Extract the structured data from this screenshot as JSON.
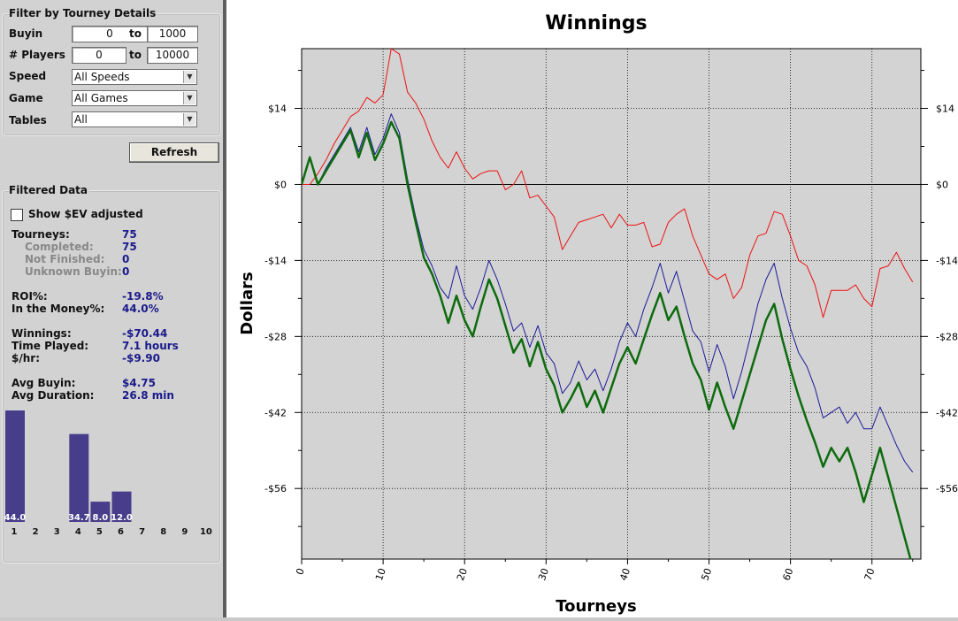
{
  "filter": {
    "title": "Filter by Tourney Details",
    "buyin_label": "Buyin",
    "buyin_from": "0",
    "buyin_to": "1000",
    "players_label": "# Players",
    "players_from": "0",
    "players_to": "10000",
    "to_label": "to",
    "speed_label": "Speed",
    "speed_value": "All Speeds",
    "game_label": "Game",
    "game_value": "All Games",
    "tables_label": "Tables",
    "tables_value": "All",
    "refresh_label": "Refresh"
  },
  "filtered": {
    "title": "Filtered Data",
    "show_ev_label": "Show $EV adjusted",
    "show_ev_checked": false,
    "stats": [
      {
        "label": "Tourneys:",
        "value": "75",
        "sub": false
      },
      {
        "label": "Completed:",
        "value": "75",
        "sub": true
      },
      {
        "label": "Not Finished:",
        "value": "0",
        "sub": true
      },
      {
        "label": "Unknown Buyin:",
        "value": "0",
        "sub": true
      },
      {
        "label": "ROI%:",
        "value": "-19.8%",
        "sub": false
      },
      {
        "label": "In the Money%:",
        "value": "44.0%",
        "sub": false
      },
      {
        "label": "Winnings:",
        "value": "-$70.44",
        "sub": false
      },
      {
        "label": "Time Played:",
        "value": "7.1 hours",
        "sub": false
      },
      {
        "label": "$/hr:",
        "value": "-$9.90",
        "sub": false
      },
      {
        "label": "Avg Buyin:",
        "value": "$4.75",
        "sub": false
      },
      {
        "label": "Avg Duration:",
        "value": "26.8 min",
        "sub": false
      }
    ]
  },
  "colors": {
    "hist_bar": "#483d8b",
    "plot_bg": "#d3d3d3",
    "red": "#ee1111",
    "blue": "#1a1a9a",
    "green": "#0d6b0d"
  },
  "chart_data": [
    {
      "type": "bar",
      "categories": [
        "1",
        "2",
        "3",
        "4",
        "5",
        "6",
        "7",
        "8",
        "9",
        "10"
      ],
      "values": [
        44.0,
        0,
        0,
        34.7,
        8.0,
        12.0,
        0,
        0,
        0,
        0
      ],
      "value_labels": [
        "44.0",
        "",
        "",
        "34.7",
        "8.0",
        "12.0",
        "",
        "",
        "",
        ""
      ],
      "ylim": [
        0,
        44.0
      ]
    },
    {
      "type": "line",
      "title": "Winnings",
      "xlabel": "Tourneys",
      "ylabel": "Dollars",
      "xlim": [
        0,
        76
      ],
      "ylim": [
        -69,
        25
      ],
      "xticks": [
        0,
        10,
        20,
        30,
        40,
        50,
        60,
        70
      ],
      "yticks": [
        14,
        0,
        -14,
        -28,
        -42,
        -56
      ],
      "ytick_labels": [
        "$14",
        "$0",
        "-$14",
        "-$28",
        "-$42",
        "-$56"
      ],
      "grid": true,
      "series": [
        {
          "color": "red",
          "width": 1,
          "values": [
            0,
            0,
            2,
            4.5,
            7.5,
            10,
            12.5,
            13.5,
            16,
            15,
            16.5,
            25,
            24,
            17,
            15,
            12,
            8,
            5,
            3,
            6,
            3,
            1,
            2,
            2.5,
            2.5,
            -1,
            0,
            2.5,
            -2.5,
            -2,
            -4,
            -6,
            -12,
            -9.5,
            -7,
            -6.5,
            -6,
            -5.5,
            -8,
            -5.5,
            -7.5,
            -7.5,
            -7,
            -11.5,
            -11,
            -7,
            -5.5,
            -4.5,
            -9.5,
            -13,
            -16.5,
            -17.5,
            -16.5,
            -21,
            -19,
            -13,
            -9.5,
            -9,
            -5,
            -5.5,
            -9.5,
            -14,
            -15,
            -18.5,
            -24.5,
            -19.5,
            -19.5,
            -19.5,
            -18.5,
            -21,
            -22.5,
            -15.5,
            -15,
            -12.5,
            -15.5,
            -18
          ]
        },
        {
          "color": "blue",
          "width": 1,
          "values": [
            0,
            5,
            0,
            3,
            5.5,
            8,
            10.5,
            6,
            10.5,
            5.5,
            8.5,
            13,
            9.5,
            1,
            -6,
            -12,
            -15,
            -19,
            -21,
            -15,
            -20.5,
            -23,
            -19,
            -14,
            -17.5,
            -22,
            -27,
            -25.5,
            -30,
            -26,
            -31,
            -33,
            -38.5,
            -36.5,
            -32.5,
            -36,
            -34,
            -38,
            -34,
            -29,
            -25.5,
            -28,
            -23,
            -19,
            -14.5,
            -20,
            -16,
            -21.5,
            -27,
            -29,
            -34.5,
            -29.5,
            -33.5,
            -39.5,
            -34.5,
            -28.5,
            -22,
            -17.5,
            -14.5,
            -21,
            -26.5,
            -31,
            -33.5,
            -37.5,
            -43,
            -42,
            -41,
            -44,
            -42,
            -45,
            -45,
            -41,
            -44.5,
            -48,
            -51,
            -53
          ]
        },
        {
          "color": "green",
          "width": 2.5,
          "values": [
            0,
            5,
            0,
            2.5,
            5,
            7.5,
            10,
            5,
            9.5,
            4.5,
            7.5,
            11.5,
            8.5,
            0,
            -7,
            -13.5,
            -16.5,
            -20.5,
            -25.5,
            -20.5,
            -25,
            -28,
            -22.5,
            -17.5,
            -21,
            -26,
            -31,
            -28.5,
            -33.5,
            -29,
            -34,
            -37,
            -42,
            -39.5,
            -36.5,
            -41,
            -38,
            -42,
            -37.5,
            -33,
            -30,
            -33,
            -28.5,
            -24,
            -20,
            -25,
            -22.5,
            -28,
            -33,
            -36,
            -41.5,
            -36.5,
            -41,
            -45,
            -40,
            -35,
            -30,
            -25,
            -22,
            -28.5,
            -34,
            -39,
            -43.5,
            -47.5,
            -52,
            -48.5,
            -51,
            -48.5,
            -53,
            -58.5,
            -53.5,
            -48.5,
            -54,
            -59.5,
            -65,
            -70.5
          ]
        }
      ]
    }
  ]
}
